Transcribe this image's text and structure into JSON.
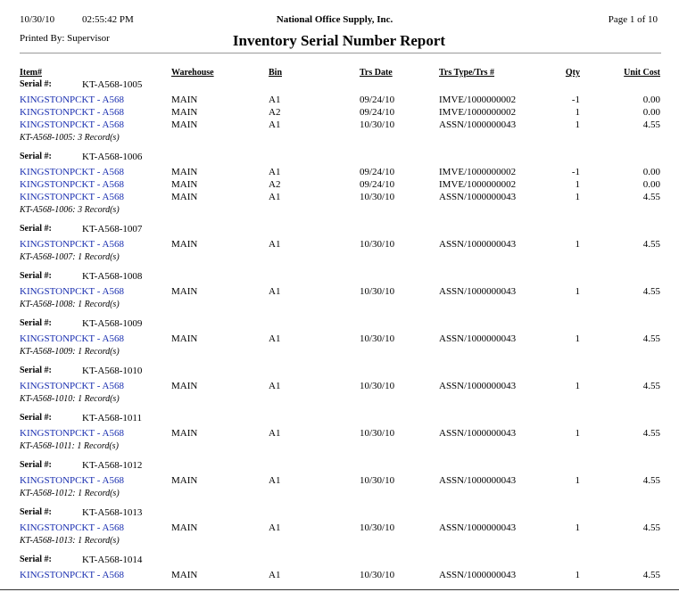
{
  "header": {
    "date": "10/30/10",
    "time": "02:55:42 PM",
    "company": "National Office Supply, Inc.",
    "page": "Page 1 of 10",
    "printed_by": "Printed By: Supervisor",
    "title": "Inventory Serial Number Report"
  },
  "columns": [
    "Item#",
    "Warehouse",
    "Bin",
    "Trs Date",
    "Trs Type/Trs #",
    "Qty",
    "Unit Cost"
  ],
  "serial_label": "Serial #:",
  "groups": [
    {
      "serial": "KT-A568-1005",
      "rows": [
        [
          "KINGSTONPCKT - A568",
          "MAIN",
          "A1",
          "09/24/10",
          "IMVE/1000000002",
          "-1",
          "0.00"
        ],
        [
          "KINGSTONPCKT - A568",
          "MAIN",
          "A2",
          "09/24/10",
          "IMVE/1000000002",
          "1",
          "0.00"
        ],
        [
          "KINGSTONPCKT - A568",
          "MAIN",
          "A1",
          "10/30/10",
          "ASSN/1000000043",
          "1",
          "4.55"
        ]
      ],
      "summary": "KT-A568-1005: 3 Record(s)"
    },
    {
      "serial": "KT-A568-1006",
      "rows": [
        [
          "KINGSTONPCKT - A568",
          "MAIN",
          "A1",
          "09/24/10",
          "IMVE/1000000002",
          "-1",
          "0.00"
        ],
        [
          "KINGSTONPCKT - A568",
          "MAIN",
          "A2",
          "09/24/10",
          "IMVE/1000000002",
          "1",
          "0.00"
        ],
        [
          "KINGSTONPCKT - A568",
          "MAIN",
          "A1",
          "10/30/10",
          "ASSN/1000000043",
          "1",
          "4.55"
        ]
      ],
      "summary": "KT-A568-1006: 3 Record(s)"
    },
    {
      "serial": "KT-A568-1007",
      "rows": [
        [
          "KINGSTONPCKT - A568",
          "MAIN",
          "A1",
          "10/30/10",
          "ASSN/1000000043",
          "1",
          "4.55"
        ]
      ],
      "summary": "KT-A568-1007: 1 Record(s)"
    },
    {
      "serial": "KT-A568-1008",
      "rows": [
        [
          "KINGSTONPCKT - A568",
          "MAIN",
          "A1",
          "10/30/10",
          "ASSN/1000000043",
          "1",
          "4.55"
        ]
      ],
      "summary": "KT-A568-1008: 1 Record(s)"
    },
    {
      "serial": "KT-A568-1009",
      "rows": [
        [
          "KINGSTONPCKT - A568",
          "MAIN",
          "A1",
          "10/30/10",
          "ASSN/1000000043",
          "1",
          "4.55"
        ]
      ],
      "summary": "KT-A568-1009: 1 Record(s)"
    },
    {
      "serial": "KT-A568-1010",
      "rows": [
        [
          "KINGSTONPCKT - A568",
          "MAIN",
          "A1",
          "10/30/10",
          "ASSN/1000000043",
          "1",
          "4.55"
        ]
      ],
      "summary": "KT-A568-1010: 1 Record(s)"
    },
    {
      "serial": "KT-A568-1011",
      "rows": [
        [
          "KINGSTONPCKT - A568",
          "MAIN",
          "A1",
          "10/30/10",
          "ASSN/1000000043",
          "1",
          "4.55"
        ]
      ],
      "summary": "KT-A568-1011: 1 Record(s)"
    },
    {
      "serial": "KT-A568-1012",
      "rows": [
        [
          "KINGSTONPCKT - A568",
          "MAIN",
          "A1",
          "10/30/10",
          "ASSN/1000000043",
          "1",
          "4.55"
        ]
      ],
      "summary": "KT-A568-1012: 1 Record(s)"
    },
    {
      "serial": "KT-A568-1013",
      "rows": [
        [
          "KINGSTONPCKT - A568",
          "MAIN",
          "A1",
          "10/30/10",
          "ASSN/1000000043",
          "1",
          "4.55"
        ]
      ],
      "summary": "KT-A568-1013: 1 Record(s)"
    },
    {
      "serial": "KT-A568-1014",
      "rows": [
        [
          "KINGSTONPCKT - A568",
          "MAIN",
          "A1",
          "10/30/10",
          "ASSN/1000000043",
          "1",
          "4.55"
        ]
      ]
    }
  ]
}
